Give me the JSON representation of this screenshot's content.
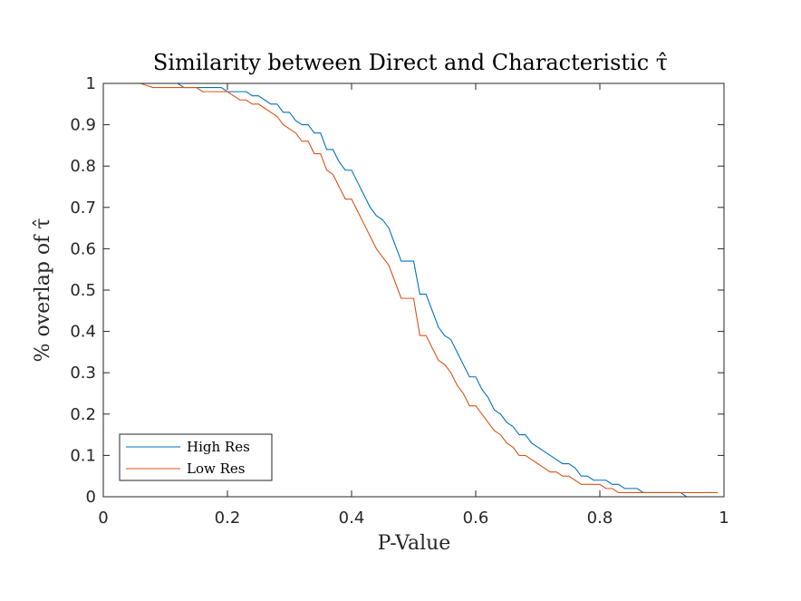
{
  "chart_data": {
    "type": "line",
    "title": "Similarity between Direct and Characteristic τ̂",
    "xlabel": "P-Value",
    "ylabel": "% overlap of τ̂",
    "xlim": [
      0,
      1
    ],
    "ylim": [
      0,
      1
    ],
    "xticks": [
      "0",
      "0.2",
      "0.4",
      "0.6",
      "0.8",
      "1"
    ],
    "yticks": [
      "0",
      "0.1",
      "0.2",
      "0.3",
      "0.4",
      "0.5",
      "0.6",
      "0.7",
      "0.8",
      "0.9",
      "1"
    ],
    "grid": false,
    "legend_position": "bottom-left",
    "series": [
      {
        "name": "High Res",
        "color": "#0072BD",
        "x": [
          0,
          0.07,
          0.08,
          0.12,
          0.13,
          0.19,
          0.2,
          0.23,
          0.24,
          0.25,
          0.26,
          0.27,
          0.28,
          0.29,
          0.3,
          0.31,
          0.32,
          0.33,
          0.34,
          0.35,
          0.36,
          0.37,
          0.38,
          0.39,
          0.4,
          0.41,
          0.42,
          0.43,
          0.44,
          0.45,
          0.46,
          0.47,
          0.48,
          0.49,
          0.5,
          0.51,
          0.52,
          0.53,
          0.54,
          0.55,
          0.56,
          0.57,
          0.58,
          0.59,
          0.6,
          0.61,
          0.62,
          0.63,
          0.64,
          0.65,
          0.66,
          0.67,
          0.68,
          0.69,
          0.7,
          0.71,
          0.72,
          0.73,
          0.74,
          0.75,
          0.76,
          0.77,
          0.78,
          0.79,
          0.8,
          0.81,
          0.82,
          0.83,
          0.84,
          0.85,
          0.86,
          0.87,
          0.93,
          0.94,
          1.0
        ],
        "y": [
          1.0,
          1.0,
          1.0,
          1.0,
          0.99,
          0.99,
          0.98,
          0.98,
          0.97,
          0.97,
          0.96,
          0.95,
          0.95,
          0.93,
          0.93,
          0.91,
          0.9,
          0.9,
          0.88,
          0.88,
          0.84,
          0.84,
          0.81,
          0.79,
          0.79,
          0.76,
          0.73,
          0.7,
          0.68,
          0.67,
          0.65,
          0.61,
          0.57,
          0.57,
          0.57,
          0.49,
          0.49,
          0.45,
          0.41,
          0.39,
          0.38,
          0.35,
          0.32,
          0.29,
          0.29,
          0.26,
          0.24,
          0.21,
          0.2,
          0.18,
          0.17,
          0.15,
          0.15,
          0.13,
          0.12,
          0.11,
          0.1,
          0.09,
          0.08,
          0.08,
          0.07,
          0.05,
          0.05,
          0.04,
          0.04,
          0.04,
          0.03,
          0.03,
          0.02,
          0.02,
          0.02,
          0.01,
          0.01,
          0.0,
          0.0
        ]
      },
      {
        "name": "Low Res",
        "color": "#D95319",
        "x": [
          0,
          0.06,
          0.08,
          0.15,
          0.16,
          0.2,
          0.21,
          0.22,
          0.23,
          0.24,
          0.25,
          0.26,
          0.27,
          0.28,
          0.29,
          0.3,
          0.31,
          0.32,
          0.33,
          0.34,
          0.35,
          0.36,
          0.37,
          0.38,
          0.39,
          0.4,
          0.41,
          0.42,
          0.43,
          0.44,
          0.45,
          0.46,
          0.47,
          0.48,
          0.49,
          0.5,
          0.51,
          0.52,
          0.53,
          0.54,
          0.55,
          0.56,
          0.57,
          0.58,
          0.59,
          0.6,
          0.61,
          0.62,
          0.63,
          0.64,
          0.65,
          0.66,
          0.67,
          0.68,
          0.69,
          0.7,
          0.71,
          0.72,
          0.73,
          0.74,
          0.75,
          0.76,
          0.77,
          0.78,
          0.79,
          0.8,
          0.81,
          0.82,
          0.83,
          0.87,
          0.9,
          0.99
        ],
        "y": [
          1.0,
          1.0,
          0.99,
          0.99,
          0.98,
          0.98,
          0.97,
          0.96,
          0.96,
          0.95,
          0.95,
          0.94,
          0.93,
          0.92,
          0.9,
          0.89,
          0.88,
          0.86,
          0.86,
          0.83,
          0.83,
          0.79,
          0.78,
          0.75,
          0.72,
          0.72,
          0.69,
          0.66,
          0.63,
          0.6,
          0.58,
          0.56,
          0.52,
          0.48,
          0.48,
          0.48,
          0.39,
          0.39,
          0.36,
          0.33,
          0.32,
          0.3,
          0.27,
          0.25,
          0.22,
          0.22,
          0.2,
          0.18,
          0.16,
          0.15,
          0.13,
          0.12,
          0.1,
          0.1,
          0.09,
          0.08,
          0.07,
          0.06,
          0.06,
          0.05,
          0.05,
          0.04,
          0.03,
          0.03,
          0.03,
          0.03,
          0.02,
          0.02,
          0.01,
          0.01,
          0.01,
          0.01
        ]
      }
    ]
  }
}
